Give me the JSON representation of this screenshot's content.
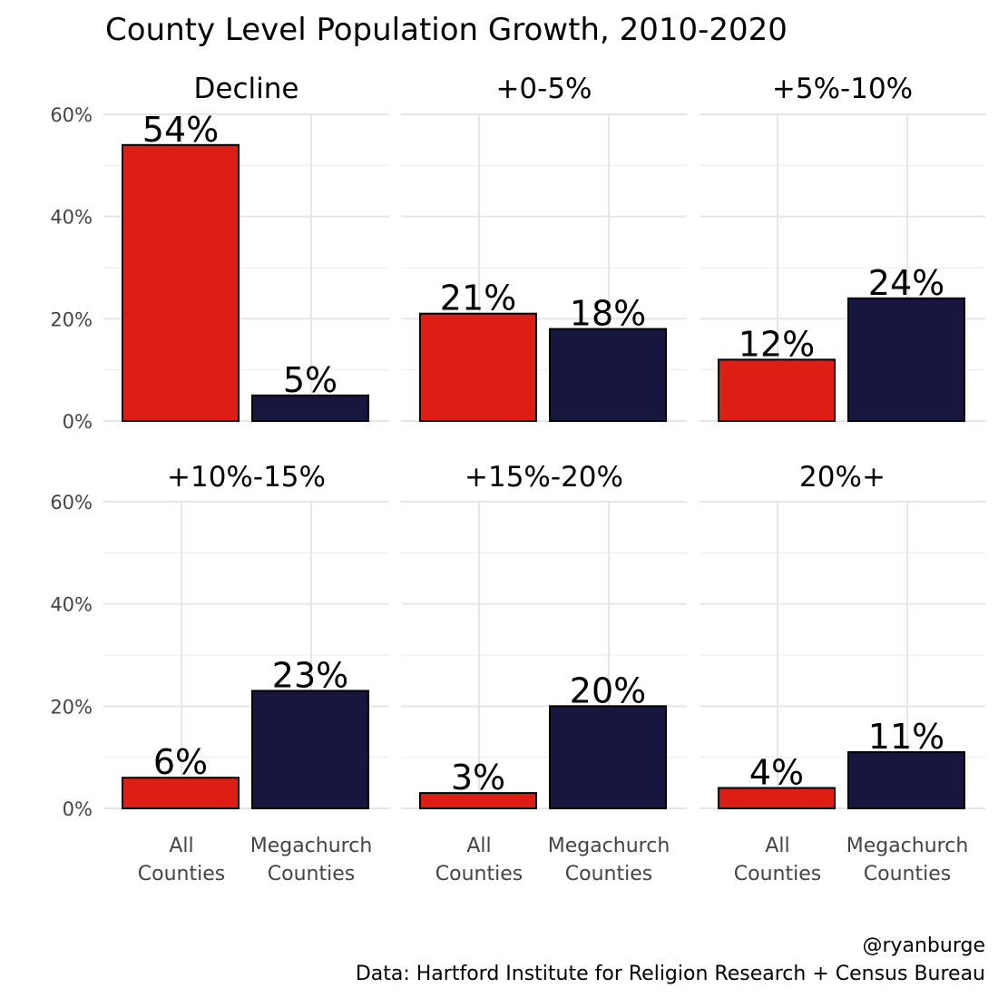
{
  "chart_data": {
    "type": "bar",
    "title": "County Level Population Growth, 2010-2020",
    "categories": [
      "All\nCounties",
      "Megachurch\nCounties"
    ],
    "ylim": [
      0,
      60
    ],
    "y_ticks": [
      "0%",
      "20%",
      "40%",
      "60%"
    ],
    "grid": true,
    "colors": {
      "All Counties": "#dc1e14",
      "Megachurch Counties": "#16163e"
    },
    "panels": [
      {
        "label": "Decline",
        "values": [
          54,
          5
        ],
        "labels": [
          "54%",
          "5%"
        ]
      },
      {
        "label": "+0-5%",
        "values": [
          21,
          18
        ],
        "labels": [
          "21%",
          "18%"
        ]
      },
      {
        "label": "+5%-10%",
        "values": [
          12,
          24
        ],
        "labels": [
          "12%",
          "24%"
        ]
      },
      {
        "label": "+10%-15%",
        "values": [
          6,
          23
        ],
        "labels": [
          "6%",
          "23%"
        ]
      },
      {
        "label": "+15%-20%",
        "values": [
          3,
          20
        ],
        "labels": [
          "3%",
          "20%"
        ]
      },
      {
        "label": "20%+",
        "values": [
          4,
          11
        ],
        "labels": [
          "4%",
          "11%"
        ]
      }
    ],
    "caption": [
      "@ryanburge",
      "Data: Hartford Institute for Religion Research + Census Bureau"
    ]
  }
}
